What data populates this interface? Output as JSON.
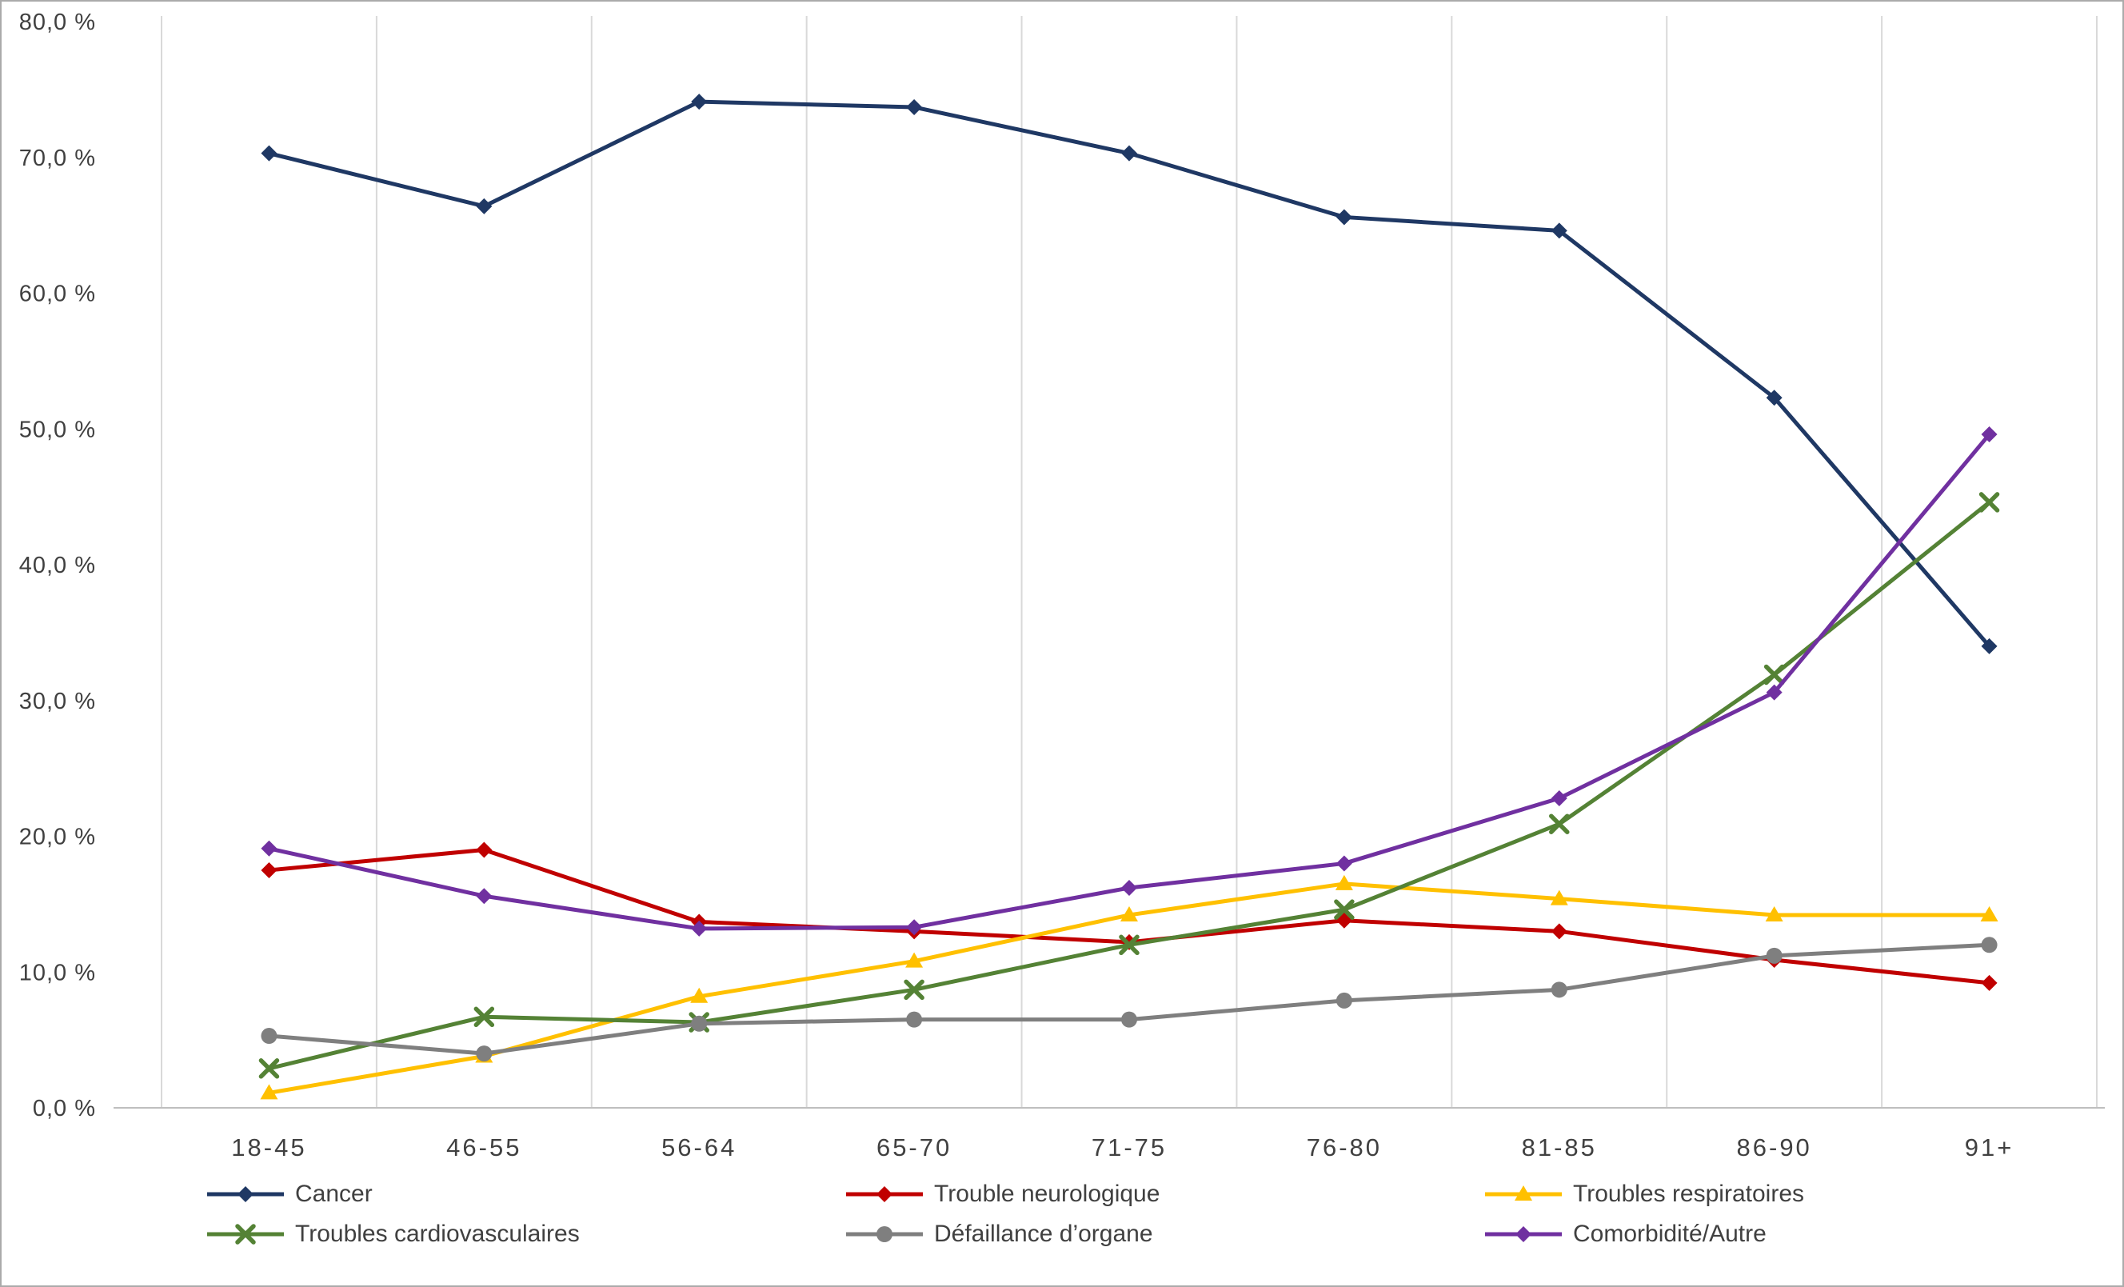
{
  "chart_data": {
    "type": "line",
    "title": "",
    "xlabel": "",
    "ylabel": "",
    "categories": [
      "18-45",
      "46-55",
      "56-64",
      "65-70",
      "71-75",
      "76-80",
      "81-85",
      "86-90",
      "91+"
    ],
    "y_axis": {
      "min": 0,
      "max": 80,
      "step": 10,
      "tick_labels": [
        "0,0 %",
        "10,0 %",
        "20,0 %",
        "30,0 %",
        "40,0 %",
        "50,0 %",
        "60,0 %",
        "70,0 %",
        "80,0 %"
      ]
    },
    "grid": {
      "vertical": true,
      "horizontal": false,
      "gridline_color": "#d9d9d9",
      "axis_line_color": "#bfbfbf"
    },
    "legend_position": "bottom",
    "series": [
      {
        "name": "Cancer",
        "color": "#1f3864",
        "marker": "diamond",
        "values": [
          70.3,
          66.4,
          74.1,
          73.7,
          70.3,
          65.6,
          64.6,
          52.3,
          34.0
        ]
      },
      {
        "name": "Trouble neurologique",
        "color": "#c00000",
        "marker": "diamond",
        "values": [
          17.5,
          19.0,
          13.7,
          13.0,
          12.2,
          13.8,
          13.0,
          10.9,
          9.2
        ]
      },
      {
        "name": "Troubles respiratoires",
        "color": "#ffc000",
        "marker": "triangle",
        "values": [
          1.1,
          3.8,
          8.2,
          10.8,
          14.2,
          16.5,
          15.4,
          14.2,
          14.2
        ]
      },
      {
        "name": "Troubles cardiovasculaires",
        "color": "#548235",
        "marker": "x",
        "values": [
          2.9,
          6.7,
          6.3,
          8.7,
          12.0,
          14.6,
          20.9,
          31.9,
          44.6
        ]
      },
      {
        "name": "Défaillance d’organe",
        "color": "#7f7f7f",
        "marker": "circle",
        "values": [
          5.3,
          4.0,
          6.2,
          6.5,
          6.5,
          7.9,
          8.7,
          11.2,
          12.0
        ]
      },
      {
        "name": "Comorbidité/Autre",
        "color": "#7030a0",
        "marker": "diamond",
        "values": [
          19.1,
          15.6,
          13.2,
          13.3,
          16.2,
          18.0,
          22.8,
          30.6,
          49.6
        ]
      }
    ],
    "text_color": "#404040"
  }
}
